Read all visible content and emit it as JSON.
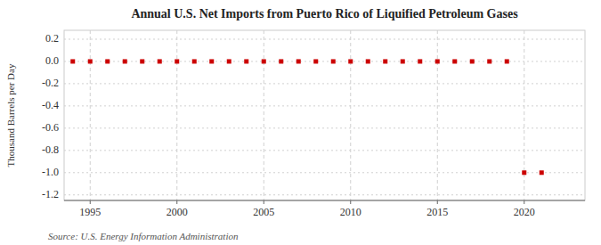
{
  "chart_data": {
    "type": "scatter",
    "title": "Annual U.S. Net Imports from Puerto Rico of Liquified Petroleum Gases",
    "ylabel": "Thousand Barrels per Day",
    "source": "Source: U.S. Energy Information Administration",
    "x": [
      1994,
      1995,
      1996,
      1997,
      1998,
      1999,
      2000,
      2001,
      2002,
      2003,
      2004,
      2005,
      2006,
      2007,
      2008,
      2009,
      2010,
      2011,
      2012,
      2013,
      2014,
      2015,
      2016,
      2017,
      2018,
      2019,
      2020,
      2021
    ],
    "values": [
      0,
      0,
      0,
      0,
      0,
      0,
      0,
      0,
      0,
      0,
      0,
      0,
      0,
      0,
      0,
      0,
      0,
      0,
      0,
      0,
      0,
      0,
      0,
      0,
      0,
      0,
      -1.0,
      -1.0
    ],
    "color": "#cc0000",
    "marker": "square",
    "xlim": [
      1993.5,
      2023.5
    ],
    "ylim": [
      -1.25,
      0.28
    ],
    "xticks": [
      1995,
      2000,
      2005,
      2010,
      2015,
      2020
    ],
    "yticks": [
      0.2,
      {
        "value": 0.0,
        "label": "0.0"
      },
      -0.2,
      -0.4,
      -0.6,
      -0.8,
      {
        "value": -1.0,
        "label": "-1.0"
      },
      -1.2
    ],
    "grid": true
  }
}
